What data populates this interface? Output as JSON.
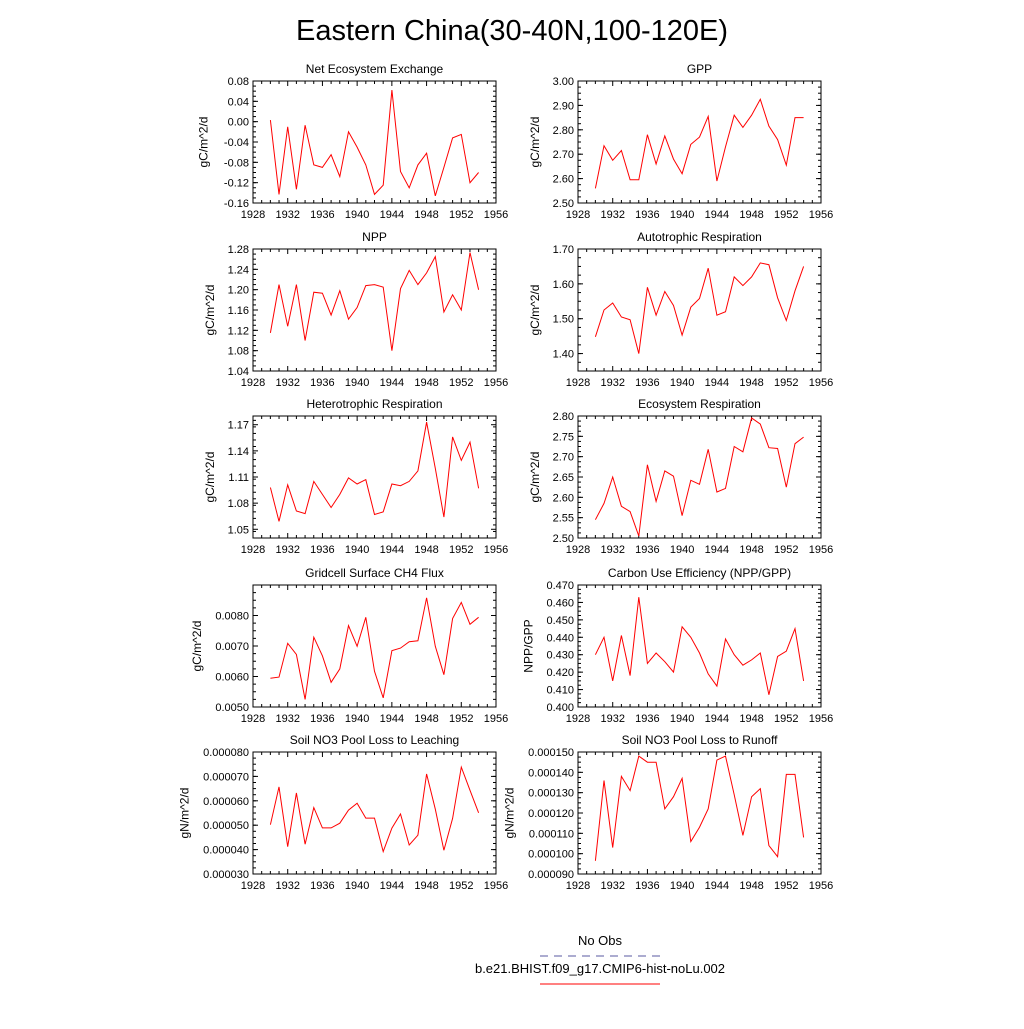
{
  "title": "Eastern China(30-40N,100-120E)",
  "legend": {
    "entries": [
      {
        "label": "No Obs",
        "color": "#5a5aa0",
        "dash": true
      },
      {
        "label": "b.e21.BHIST.f09_g17.CMIP6-hist-noLu.002",
        "color": "#ff0000",
        "dash": false
      }
    ]
  },
  "chart_data": [
    {
      "type": "line",
      "title": "Net Ecosystem Exchange",
      "ylabel": "gC/m^2/d",
      "xlim": [
        1928,
        1956
      ],
      "ylim": [
        -0.16,
        0.08
      ],
      "xticks": [
        "1928",
        "1932",
        "1936",
        "1940",
        "1944",
        "1948",
        "1952",
        "1956"
      ],
      "yticks": [
        "-0.16",
        "-0.12",
        "-0.08",
        "-0.04",
        "0.00",
        "0.04",
        "0.08"
      ],
      "series": [
        {
          "color": "#ff0000",
          "x": [
            1930,
            1931,
            1932,
            1933,
            1934,
            1935,
            1936,
            1937,
            1938,
            1939,
            1940,
            1941,
            1942,
            1943,
            1944,
            1945,
            1946,
            1947,
            1948,
            1949,
            1950,
            1951,
            1952,
            1953,
            1954
          ],
          "y": [
            0.003,
            -0.143,
            -0.01,
            -0.133,
            -0.007,
            -0.085,
            -0.09,
            -0.065,
            -0.108,
            -0.02,
            -0.05,
            -0.085,
            -0.143,
            -0.125,
            0.062,
            -0.098,
            -0.13,
            -0.085,
            -0.062,
            -0.146,
            -0.09,
            -0.032,
            -0.025,
            -0.12,
            -0.1
          ]
        }
      ]
    },
    {
      "type": "line",
      "title": "GPP",
      "ylabel": "gC/m^2/d",
      "xlim": [
        1928,
        1956
      ],
      "ylim": [
        2.5,
        3.0
      ],
      "xticks": [
        "1928",
        "1932",
        "1936",
        "1940",
        "1944",
        "1948",
        "1952",
        "1956"
      ],
      "yticks": [
        "2.50",
        "2.60",
        "2.70",
        "2.80",
        "2.90",
        "3.00"
      ],
      "series": [
        {
          "color": "#ff0000",
          "x": [
            1930,
            1931,
            1932,
            1933,
            1934,
            1935,
            1936,
            1937,
            1938,
            1939,
            1940,
            1941,
            1942,
            1943,
            1944,
            1945,
            1946,
            1947,
            1948,
            1949,
            1950,
            1951,
            1952,
            1953,
            1954
          ],
          "y": [
            2.56,
            2.735,
            2.675,
            2.715,
            2.595,
            2.595,
            2.78,
            2.66,
            2.775,
            2.68,
            2.62,
            2.74,
            2.77,
            2.855,
            2.59,
            2.73,
            2.86,
            2.81,
            2.86,
            2.925,
            2.815,
            2.76,
            2.655,
            2.85,
            2.85
          ]
        }
      ]
    },
    {
      "type": "line",
      "title": "NPP",
      "ylabel": "gC/m^2/d",
      "xlim": [
        1928,
        1956
      ],
      "ylim": [
        1.04,
        1.28
      ],
      "xticks": [
        "1928",
        "1932",
        "1936",
        "1940",
        "1944",
        "1948",
        "1952",
        "1956"
      ],
      "yticks": [
        "1.04",
        "1.08",
        "1.12",
        "1.16",
        "1.20",
        "1.24",
        "1.28"
      ],
      "series": [
        {
          "color": "#ff0000",
          "x": [
            1930,
            1931,
            1932,
            1933,
            1934,
            1935,
            1936,
            1937,
            1938,
            1939,
            1940,
            1941,
            1942,
            1943,
            1944,
            1945,
            1946,
            1947,
            1948,
            1949,
            1950,
            1951,
            1952,
            1953,
            1954
          ],
          "y": [
            1.115,
            1.21,
            1.128,
            1.21,
            1.1,
            1.195,
            1.193,
            1.15,
            1.198,
            1.142,
            1.165,
            1.208,
            1.21,
            1.205,
            1.08,
            1.202,
            1.238,
            1.21,
            1.233,
            1.265,
            1.156,
            1.19,
            1.16,
            1.273,
            1.2
          ]
        }
      ]
    },
    {
      "type": "line",
      "title": "Autotrophic Respiration",
      "ylabel": "gC/m^2/d",
      "xlim": [
        1928,
        1956
      ],
      "ylim": [
        1.35,
        1.7
      ],
      "xticks": [
        "1928",
        "1932",
        "1936",
        "1940",
        "1944",
        "1948",
        "1952",
        "1956"
      ],
      "yticks": [
        "1.40",
        "1.50",
        "1.60",
        "1.70"
      ],
      "series": [
        {
          "color": "#ff0000",
          "x": [
            1930,
            1931,
            1932,
            1933,
            1934,
            1935,
            1936,
            1937,
            1938,
            1939,
            1940,
            1941,
            1942,
            1943,
            1944,
            1945,
            1946,
            1947,
            1948,
            1949,
            1950,
            1951,
            1952,
            1953,
            1954
          ],
          "y": [
            1.448,
            1.525,
            1.545,
            1.505,
            1.497,
            1.4,
            1.59,
            1.51,
            1.578,
            1.538,
            1.453,
            1.533,
            1.558,
            1.645,
            1.51,
            1.52,
            1.62,
            1.595,
            1.62,
            1.66,
            1.655,
            1.56,
            1.495,
            1.58,
            1.65
          ]
        }
      ]
    },
    {
      "type": "line",
      "title": "Heterotrophic Respiration",
      "ylabel": "gC/m^2/d",
      "xlim": [
        1928,
        1956
      ],
      "ylim": [
        1.04,
        1.18
      ],
      "xticks": [
        "1928",
        "1932",
        "1936",
        "1940",
        "1944",
        "1948",
        "1952",
        "1956"
      ],
      "yticks": [
        "1.05",
        "1.08",
        "1.11",
        "1.14",
        "1.17"
      ],
      "series": [
        {
          "color": "#ff0000",
          "x": [
            1930,
            1931,
            1932,
            1933,
            1934,
            1935,
            1936,
            1937,
            1938,
            1939,
            1940,
            1941,
            1942,
            1943,
            1944,
            1945,
            1946,
            1947,
            1948,
            1949,
            1950,
            1951,
            1952,
            1953,
            1954
          ],
          "y": [
            1.098,
            1.059,
            1.101,
            1.071,
            1.068,
            1.105,
            1.09,
            1.075,
            1.09,
            1.109,
            1.102,
            1.107,
            1.067,
            1.07,
            1.102,
            1.1,
            1.105,
            1.117,
            1.173,
            1.12,
            1.064,
            1.156,
            1.129,
            1.15,
            1.097
          ]
        }
      ]
    },
    {
      "type": "line",
      "title": "Ecosystem Respiration",
      "ylabel": "gC/m^2/d",
      "xlim": [
        1928,
        1956
      ],
      "ylim": [
        2.5,
        2.8
      ],
      "xticks": [
        "1928",
        "1932",
        "1936",
        "1940",
        "1944",
        "1948",
        "1952",
        "1956"
      ],
      "yticks": [
        "2.50",
        "2.55",
        "2.60",
        "2.65",
        "2.70",
        "2.75",
        "2.80"
      ],
      "series": [
        {
          "color": "#ff0000",
          "x": [
            1930,
            1931,
            1932,
            1933,
            1934,
            1935,
            1936,
            1937,
            1938,
            1939,
            1940,
            1941,
            1942,
            1943,
            1944,
            1945,
            1946,
            1947,
            1948,
            1949,
            1950,
            1951,
            1952,
            1953,
            1954
          ],
          "y": [
            2.545,
            2.585,
            2.65,
            2.578,
            2.565,
            2.505,
            2.68,
            2.59,
            2.665,
            2.652,
            2.555,
            2.642,
            2.632,
            2.718,
            2.613,
            2.622,
            2.725,
            2.712,
            2.795,
            2.78,
            2.722,
            2.72,
            2.625,
            2.732,
            2.748
          ]
        }
      ]
    },
    {
      "type": "line",
      "title": "Gridcell Surface CH4 Flux",
      "ylabel": "gC/m^2/d",
      "xlim": [
        1928,
        1956
      ],
      "ylim": [
        0.005,
        0.009
      ],
      "xticks": [
        "1928",
        "1932",
        "1936",
        "1940",
        "1944",
        "1948",
        "1952",
        "1956"
      ],
      "yticks": [
        "0.0050",
        "0.0060",
        "0.0070",
        "0.0080"
      ],
      "series": [
        {
          "color": "#ff0000",
          "x": [
            1930,
            1931,
            1932,
            1933,
            1934,
            1935,
            1936,
            1937,
            1938,
            1939,
            1940,
            1941,
            1942,
            1943,
            1944,
            1945,
            1946,
            1947,
            1948,
            1949,
            1950,
            1951,
            1952,
            1953,
            1954
          ],
          "y": [
            0.00594,
            0.00598,
            0.00709,
            0.00672,
            0.00525,
            0.00729,
            0.00668,
            0.00581,
            0.00625,
            0.00767,
            0.00699,
            0.00794,
            0.00617,
            0.0053,
            0.00685,
            0.00693,
            0.00714,
            0.00717,
            0.00858,
            0.00699,
            0.00606,
            0.0079,
            0.00843,
            0.00771,
            0.00794
          ]
        }
      ]
    },
    {
      "type": "line",
      "title": "Carbon Use Efficiency (NPP/GPP)",
      "ylabel": "NPP/GPP",
      "xlim": [
        1928,
        1956
      ],
      "ylim": [
        0.4,
        0.47
      ],
      "xticks": [
        "1928",
        "1932",
        "1936",
        "1940",
        "1944",
        "1948",
        "1952",
        "1956"
      ],
      "yticks": [
        "0.400",
        "0.410",
        "0.420",
        "0.430",
        "0.440",
        "0.450",
        "0.460",
        "0.470"
      ],
      "series": [
        {
          "color": "#ff0000",
          "x": [
            1930,
            1931,
            1932,
            1933,
            1934,
            1935,
            1936,
            1937,
            1938,
            1939,
            1940,
            1941,
            1942,
            1943,
            1944,
            1945,
            1946,
            1947,
            1948,
            1949,
            1950,
            1951,
            1952,
            1953,
            1954
          ],
          "y": [
            0.43,
            0.44,
            0.415,
            0.441,
            0.418,
            0.463,
            0.425,
            0.431,
            0.426,
            0.42,
            0.446,
            0.44,
            0.431,
            0.419,
            0.412,
            0.439,
            0.43,
            0.424,
            0.427,
            0.431,
            0.407,
            0.429,
            0.432,
            0.445,
            0.415
          ]
        }
      ]
    },
    {
      "type": "line",
      "title": "Soil NO3 Pool Loss to Leaching",
      "ylabel": "gN/m^2/d",
      "xlim": [
        1928,
        1956
      ],
      "ylim": [
        3e-05,
        8e-05
      ],
      "xticks": [
        "1928",
        "1932",
        "1936",
        "1940",
        "1944",
        "1948",
        "1952",
        "1956"
      ],
      "yticks": [
        "0.000030",
        "0.000040",
        "0.000050",
        "0.000060",
        "0.000070",
        "0.000080"
      ],
      "series": [
        {
          "color": "#ff0000",
          "x": [
            1930,
            1931,
            1932,
            1933,
            1934,
            1935,
            1936,
            1937,
            1938,
            1939,
            1940,
            1941,
            1942,
            1943,
            1944,
            1945,
            1946,
            1947,
            1948,
            1949,
            1950,
            1951,
            1952,
            1953,
            1954
          ],
          "y": [
            5.02e-05,
            6.57e-05,
            4.12e-05,
            6.32e-05,
            4.22e-05,
            5.72e-05,
            4.89e-05,
            4.89e-05,
            5.08e-05,
            5.62e-05,
            5.9e-05,
            5.29e-05,
            5.29e-05,
            3.92e-05,
            4.88e-05,
            5.46e-05,
            4.19e-05,
            4.59e-05,
            7.1e-05,
            5.66e-05,
            3.97e-05,
            5.28e-05,
            7.38e-05,
            6.43e-05,
            5.51e-05
          ]
        }
      ]
    },
    {
      "type": "line",
      "title": "Soil NO3 Pool Loss to Runoff",
      "ylabel": "gN/m^2/d",
      "xlim": [
        1928,
        1956
      ],
      "ylim": [
        9e-05,
        0.00015
      ],
      "xticks": [
        "1928",
        "1932",
        "1936",
        "1940",
        "1944",
        "1948",
        "1952",
        "1956"
      ],
      "yticks": [
        "0.000090",
        "0.000100",
        "0.000110",
        "0.000120",
        "0.000130",
        "0.000140",
        "0.000150"
      ],
      "series": [
        {
          "color": "#ff0000",
          "x": [
            1930,
            1931,
            1932,
            1933,
            1934,
            1935,
            1936,
            1937,
            1938,
            1939,
            1940,
            1941,
            1942,
            1943,
            1944,
            1945,
            1946,
            1947,
            1948,
            1949,
            1950,
            1951,
            1952,
            1953,
            1954
          ],
          "y": [
            9.65e-05,
            0.000136,
            0.000103,
            0.000138,
            0.000131,
            0.000148,
            0.000145,
            0.000145,
            0.000122,
            0.000128,
            0.000137,
            0.000106,
            0.000113,
            0.000122,
            0.000146,
            0.000148,
            0.000129,
            0.000109,
            0.000128,
            0.000132,
            0.000104,
            9.85e-05,
            0.000139,
            0.000139,
            0.000108
          ]
        }
      ]
    }
  ]
}
